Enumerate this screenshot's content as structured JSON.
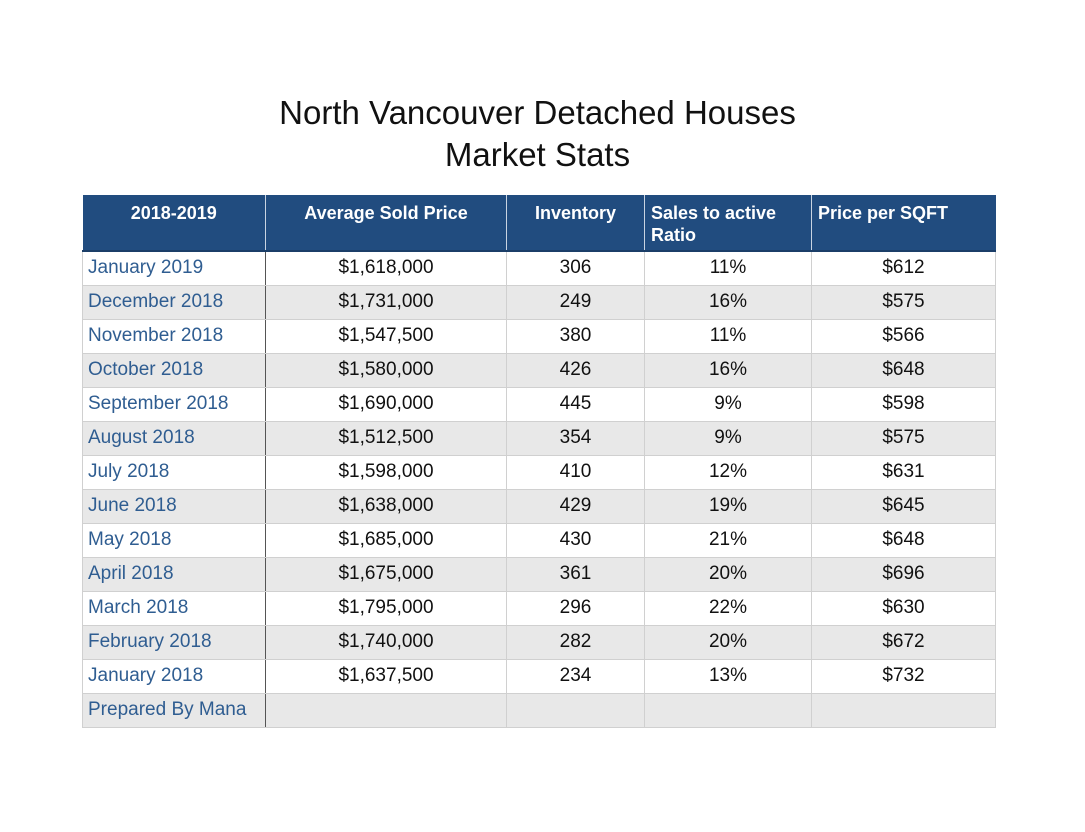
{
  "chart_data": {
    "type": "table",
    "title": "North Vancouver Detached Houses",
    "subtitle": "Market Stats",
    "columns": [
      "2018-2019",
      "Average Sold Price",
      "Inventory",
      "Sales to active Ratio",
      "Price per SQFT"
    ],
    "rows": [
      [
        "January 2019",
        "$1,618,000",
        "306",
        "11%",
        "$612"
      ],
      [
        "December 2018",
        "$1,731,000",
        "249",
        "16%",
        "$575"
      ],
      [
        "November 2018",
        "$1,547,500",
        "380",
        "11%",
        "$566"
      ],
      [
        "October 2018",
        "$1,580,000",
        "426",
        "16%",
        "$648"
      ],
      [
        "September 2018",
        "$1,690,000",
        "445",
        "9%",
        "$598"
      ],
      [
        "August 2018",
        "$1,512,500",
        "354",
        "9%",
        "$575"
      ],
      [
        "July 2018",
        "$1,598,000",
        "410",
        "12%",
        "$631"
      ],
      [
        "June 2018",
        "$1,638,000",
        "429",
        "19%",
        "$645"
      ],
      [
        "May 2018",
        "$1,685,000",
        "430",
        "21%",
        "$648"
      ],
      [
        "April  2018",
        "$1,675,000",
        "361",
        "20%",
        "$696"
      ],
      [
        "March 2018",
        "$1,795,000",
        "296",
        "22%",
        "$630"
      ],
      [
        "February 2018",
        "$1,740,000",
        "282",
        "20%",
        "$672"
      ],
      [
        "January 2018",
        "$1,637,500",
        "234",
        "13%",
        "$732"
      ],
      [
        "Prepared By Mana",
        "",
        "",
        "",
        ""
      ]
    ]
  },
  "colors": {
    "header_bg": "#214c7f",
    "header_text": "#ffffff",
    "month_text": "#2f5d91",
    "stripe": "#e8e8e8"
  }
}
